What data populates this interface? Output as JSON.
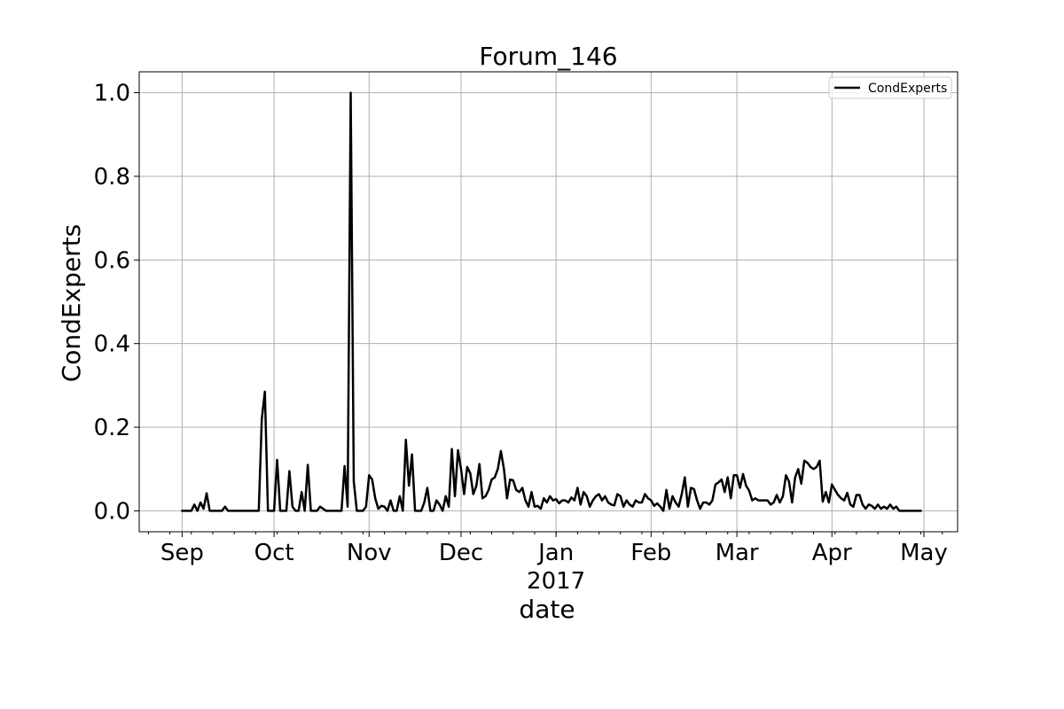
{
  "chart_data": {
    "type": "line",
    "title": "Forum_146",
    "xlabel": "date",
    "ylabel": "CondExperts",
    "x_range": [
      "2016-08-18",
      "2017-05-12"
    ],
    "ylim": [
      -0.05,
      1.05
    ],
    "grid": true,
    "legend_position": "top-right",
    "x_ticks": [
      {
        "date": "2016-09-01",
        "label": "Sep"
      },
      {
        "date": "2016-10-01",
        "label": "Oct"
      },
      {
        "date": "2016-11-01",
        "label": "Nov"
      },
      {
        "date": "2016-12-01",
        "label": "Dec"
      },
      {
        "date": "2017-01-01",
        "label": "Jan",
        "sublabel": "2017"
      },
      {
        "date": "2017-02-01",
        "label": "Feb"
      },
      {
        "date": "2017-03-01",
        "label": "Mar"
      },
      {
        "date": "2017-04-01",
        "label": "Apr"
      },
      {
        "date": "2017-05-01",
        "label": "May"
      }
    ],
    "y_ticks": [
      {
        "value": 0.0,
        "label": "0.0"
      },
      {
        "value": 0.2,
        "label": "0.2"
      },
      {
        "value": 0.4,
        "label": "0.4"
      },
      {
        "value": 0.6,
        "label": "0.6"
      },
      {
        "value": 0.8,
        "label": "0.8"
      },
      {
        "value": 1.0,
        "label": "1.0"
      }
    ],
    "series": [
      {
        "name": "CondExperts",
        "color": "#000000",
        "points": [
          [
            "2016-09-01",
            0
          ],
          [
            "2016-09-04",
            0
          ],
          [
            "2016-09-05",
            0.015
          ],
          [
            "2016-09-06",
            0
          ],
          [
            "2016-09-07",
            0.02
          ],
          [
            "2016-09-08",
            0.005
          ],
          [
            "2016-09-09",
            0.042
          ],
          [
            "2016-09-10",
            0
          ],
          [
            "2016-09-14",
            0
          ],
          [
            "2016-09-15",
            0.01
          ],
          [
            "2016-09-16",
            0
          ],
          [
            "2016-09-26",
            0
          ],
          [
            "2016-09-27",
            0.22
          ],
          [
            "2016-09-28",
            0.285
          ],
          [
            "2016-09-29",
            0
          ],
          [
            "2016-09-30",
            0
          ],
          [
            "2016-10-01",
            0
          ],
          [
            "2016-10-02",
            0.122
          ],
          [
            "2016-10-03",
            0
          ],
          [
            "2016-10-05",
            0
          ],
          [
            "2016-10-06",
            0.095
          ],
          [
            "2016-10-07",
            0.01
          ],
          [
            "2016-10-08",
            0
          ],
          [
            "2016-10-09",
            0
          ],
          [
            "2016-10-10",
            0.045
          ],
          [
            "2016-10-11",
            0
          ],
          [
            "2016-10-12",
            0.11
          ],
          [
            "2016-10-13",
            0
          ],
          [
            "2016-10-15",
            0
          ],
          [
            "2016-10-16",
            0.01
          ],
          [
            "2016-10-17",
            0.005
          ],
          [
            "2016-10-18",
            0
          ],
          [
            "2016-10-23",
            0
          ],
          [
            "2016-10-24",
            0.107
          ],
          [
            "2016-10-25",
            0.01
          ],
          [
            "2016-10-26",
            1.0
          ],
          [
            "2016-10-27",
            0.07
          ],
          [
            "2016-10-28",
            0
          ],
          [
            "2016-10-30",
            0
          ],
          [
            "2016-10-31",
            0.01
          ],
          [
            "2016-11-01",
            0.085
          ],
          [
            "2016-11-02",
            0.075
          ],
          [
            "2016-11-03",
            0.03
          ],
          [
            "2016-11-04",
            0.005
          ],
          [
            "2016-11-05",
            0.012
          ],
          [
            "2016-11-06",
            0.01
          ],
          [
            "2016-11-07",
            0
          ],
          [
            "2016-11-08",
            0.025
          ],
          [
            "2016-11-09",
            0
          ],
          [
            "2016-11-10",
            0
          ],
          [
            "2016-11-11",
            0.035
          ],
          [
            "2016-11-12",
            0
          ],
          [
            "2016-11-13",
            0.17
          ],
          [
            "2016-11-14",
            0.06
          ],
          [
            "2016-11-15",
            0.135
          ],
          [
            "2016-11-16",
            0
          ],
          [
            "2016-11-18",
            0
          ],
          [
            "2016-11-19",
            0.02
          ],
          [
            "2016-11-20",
            0.055
          ],
          [
            "2016-11-21",
            0
          ],
          [
            "2016-11-22",
            0
          ],
          [
            "2016-11-23",
            0.025
          ],
          [
            "2016-11-24",
            0.015
          ],
          [
            "2016-11-25",
            0
          ],
          [
            "2016-11-26",
            0.035
          ],
          [
            "2016-11-27",
            0.01
          ],
          [
            "2016-11-28",
            0.148
          ],
          [
            "2016-11-29",
            0.035
          ],
          [
            "2016-11-30",
            0.145
          ],
          [
            "2016-12-01",
            0.1
          ],
          [
            "2016-12-02",
            0.04
          ],
          [
            "2016-12-03",
            0.105
          ],
          [
            "2016-12-04",
            0.09
          ],
          [
            "2016-12-05",
            0.04
          ],
          [
            "2016-12-06",
            0.06
          ],
          [
            "2016-12-07",
            0.112
          ],
          [
            "2016-12-08",
            0.03
          ],
          [
            "2016-12-09",
            0.035
          ],
          [
            "2016-12-10",
            0.05
          ],
          [
            "2016-12-11",
            0.075
          ],
          [
            "2016-12-12",
            0.08
          ],
          [
            "2016-12-13",
            0.1
          ],
          [
            "2016-12-14",
            0.143
          ],
          [
            "2016-12-15",
            0.1
          ],
          [
            "2016-12-16",
            0.03
          ],
          [
            "2016-12-17",
            0.075
          ],
          [
            "2016-12-18",
            0.073
          ],
          [
            "2016-12-19",
            0.05
          ],
          [
            "2016-12-20",
            0.045
          ],
          [
            "2016-12-21",
            0.055
          ],
          [
            "2016-12-22",
            0.025
          ],
          [
            "2016-12-23",
            0.01
          ],
          [
            "2016-12-24",
            0.045
          ],
          [
            "2016-12-25",
            0.01
          ],
          [
            "2016-12-26",
            0.012
          ],
          [
            "2016-12-27",
            0.005
          ],
          [
            "2016-12-28",
            0.03
          ],
          [
            "2016-12-29",
            0.02
          ],
          [
            "2016-12-30",
            0.035
          ],
          [
            "2016-12-31",
            0.025
          ],
          [
            "2017-01-01",
            0.028
          ],
          [
            "2017-01-02",
            0.018
          ],
          [
            "2017-01-03",
            0.025
          ],
          [
            "2017-01-04",
            0.025
          ],
          [
            "2017-01-05",
            0.02
          ],
          [
            "2017-01-06",
            0.032
          ],
          [
            "2017-01-07",
            0.025
          ],
          [
            "2017-01-08",
            0.055
          ],
          [
            "2017-01-09",
            0.015
          ],
          [
            "2017-01-10",
            0.045
          ],
          [
            "2017-01-11",
            0.035
          ],
          [
            "2017-01-12",
            0.01
          ],
          [
            "2017-01-13",
            0.025
          ],
          [
            "2017-01-14",
            0.035
          ],
          [
            "2017-01-15",
            0.04
          ],
          [
            "2017-01-16",
            0.025
          ],
          [
            "2017-01-17",
            0.035
          ],
          [
            "2017-01-18",
            0.02
          ],
          [
            "2017-01-19",
            0.015
          ],
          [
            "2017-01-20",
            0.013
          ],
          [
            "2017-01-21",
            0.04
          ],
          [
            "2017-01-22",
            0.035
          ],
          [
            "2017-01-23",
            0.01
          ],
          [
            "2017-01-24",
            0.025
          ],
          [
            "2017-01-25",
            0.015
          ],
          [
            "2017-01-26",
            0.01
          ],
          [
            "2017-01-27",
            0.025
          ],
          [
            "2017-01-28",
            0.02
          ],
          [
            "2017-01-29",
            0.02
          ],
          [
            "2017-01-30",
            0.04
          ],
          [
            "2017-01-31",
            0.03
          ],
          [
            "2017-02-01",
            0.025
          ],
          [
            "2017-02-02",
            0.012
          ],
          [
            "2017-02-03",
            0.018
          ],
          [
            "2017-02-04",
            0.01
          ],
          [
            "2017-02-05",
            0
          ],
          [
            "2017-02-06",
            0.05
          ],
          [
            "2017-02-07",
            0.005
          ],
          [
            "2017-02-08",
            0.035
          ],
          [
            "2017-02-09",
            0.02
          ],
          [
            "2017-02-10",
            0.01
          ],
          [
            "2017-02-11",
            0.04
          ],
          [
            "2017-02-12",
            0.08
          ],
          [
            "2017-02-13",
            0.01
          ],
          [
            "2017-02-14",
            0.055
          ],
          [
            "2017-02-15",
            0.052
          ],
          [
            "2017-02-16",
            0.025
          ],
          [
            "2017-02-17",
            0.005
          ],
          [
            "2017-02-18",
            0.02
          ],
          [
            "2017-02-19",
            0.02
          ],
          [
            "2017-02-20",
            0.015
          ],
          [
            "2017-02-21",
            0.025
          ],
          [
            "2017-02-22",
            0.063
          ],
          [
            "2017-02-23",
            0.068
          ],
          [
            "2017-02-24",
            0.075
          ],
          [
            "2017-02-25",
            0.045
          ],
          [
            "2017-02-26",
            0.08
          ],
          [
            "2017-02-27",
            0.03
          ],
          [
            "2017-02-28",
            0.085
          ],
          [
            "2017-03-01",
            0.085
          ],
          [
            "2017-03-02",
            0.055
          ],
          [
            "2017-03-03",
            0.088
          ],
          [
            "2017-03-04",
            0.06
          ],
          [
            "2017-03-05",
            0.048
          ],
          [
            "2017-03-06",
            0.025
          ],
          [
            "2017-03-07",
            0.03
          ],
          [
            "2017-03-08",
            0.025
          ],
          [
            "2017-03-09",
            0.025
          ],
          [
            "2017-03-10",
            0.025
          ],
          [
            "2017-03-11",
            0.025
          ],
          [
            "2017-03-12",
            0.015
          ],
          [
            "2017-03-13",
            0.02
          ],
          [
            "2017-03-14",
            0.038
          ],
          [
            "2017-03-15",
            0.02
          ],
          [
            "2017-03-16",
            0.035
          ],
          [
            "2017-03-17",
            0.085
          ],
          [
            "2017-03-18",
            0.07
          ],
          [
            "2017-03-19",
            0.02
          ],
          [
            "2017-03-20",
            0.08
          ],
          [
            "2017-03-21",
            0.1
          ],
          [
            "2017-03-22",
            0.065
          ],
          [
            "2017-03-23",
            0.12
          ],
          [
            "2017-03-24",
            0.115
          ],
          [
            "2017-03-25",
            0.105
          ],
          [
            "2017-03-26",
            0.1
          ],
          [
            "2017-03-27",
            0.105
          ],
          [
            "2017-03-28",
            0.12
          ],
          [
            "2017-03-29",
            0.022
          ],
          [
            "2017-03-30",
            0.045
          ],
          [
            "2017-03-31",
            0.02
          ],
          [
            "2017-04-01",
            0.063
          ],
          [
            "2017-04-02",
            0.05
          ],
          [
            "2017-04-03",
            0.038
          ],
          [
            "2017-04-04",
            0.03
          ],
          [
            "2017-04-05",
            0.025
          ],
          [
            "2017-04-06",
            0.043
          ],
          [
            "2017-04-07",
            0.015
          ],
          [
            "2017-04-08",
            0.01
          ],
          [
            "2017-04-09",
            0.038
          ],
          [
            "2017-04-10",
            0.038
          ],
          [
            "2017-04-11",
            0.015
          ],
          [
            "2017-04-12",
            0.005
          ],
          [
            "2017-04-13",
            0.015
          ],
          [
            "2017-04-14",
            0.012
          ],
          [
            "2017-04-15",
            0.005
          ],
          [
            "2017-04-16",
            0.015
          ],
          [
            "2017-04-17",
            0.005
          ],
          [
            "2017-04-18",
            0.01
          ],
          [
            "2017-04-19",
            0.005
          ],
          [
            "2017-04-20",
            0.015
          ],
          [
            "2017-04-21",
            0.005
          ],
          [
            "2017-04-22",
            0.01
          ],
          [
            "2017-04-23",
            0
          ],
          [
            "2017-04-30",
            0
          ]
        ]
      }
    ]
  }
}
